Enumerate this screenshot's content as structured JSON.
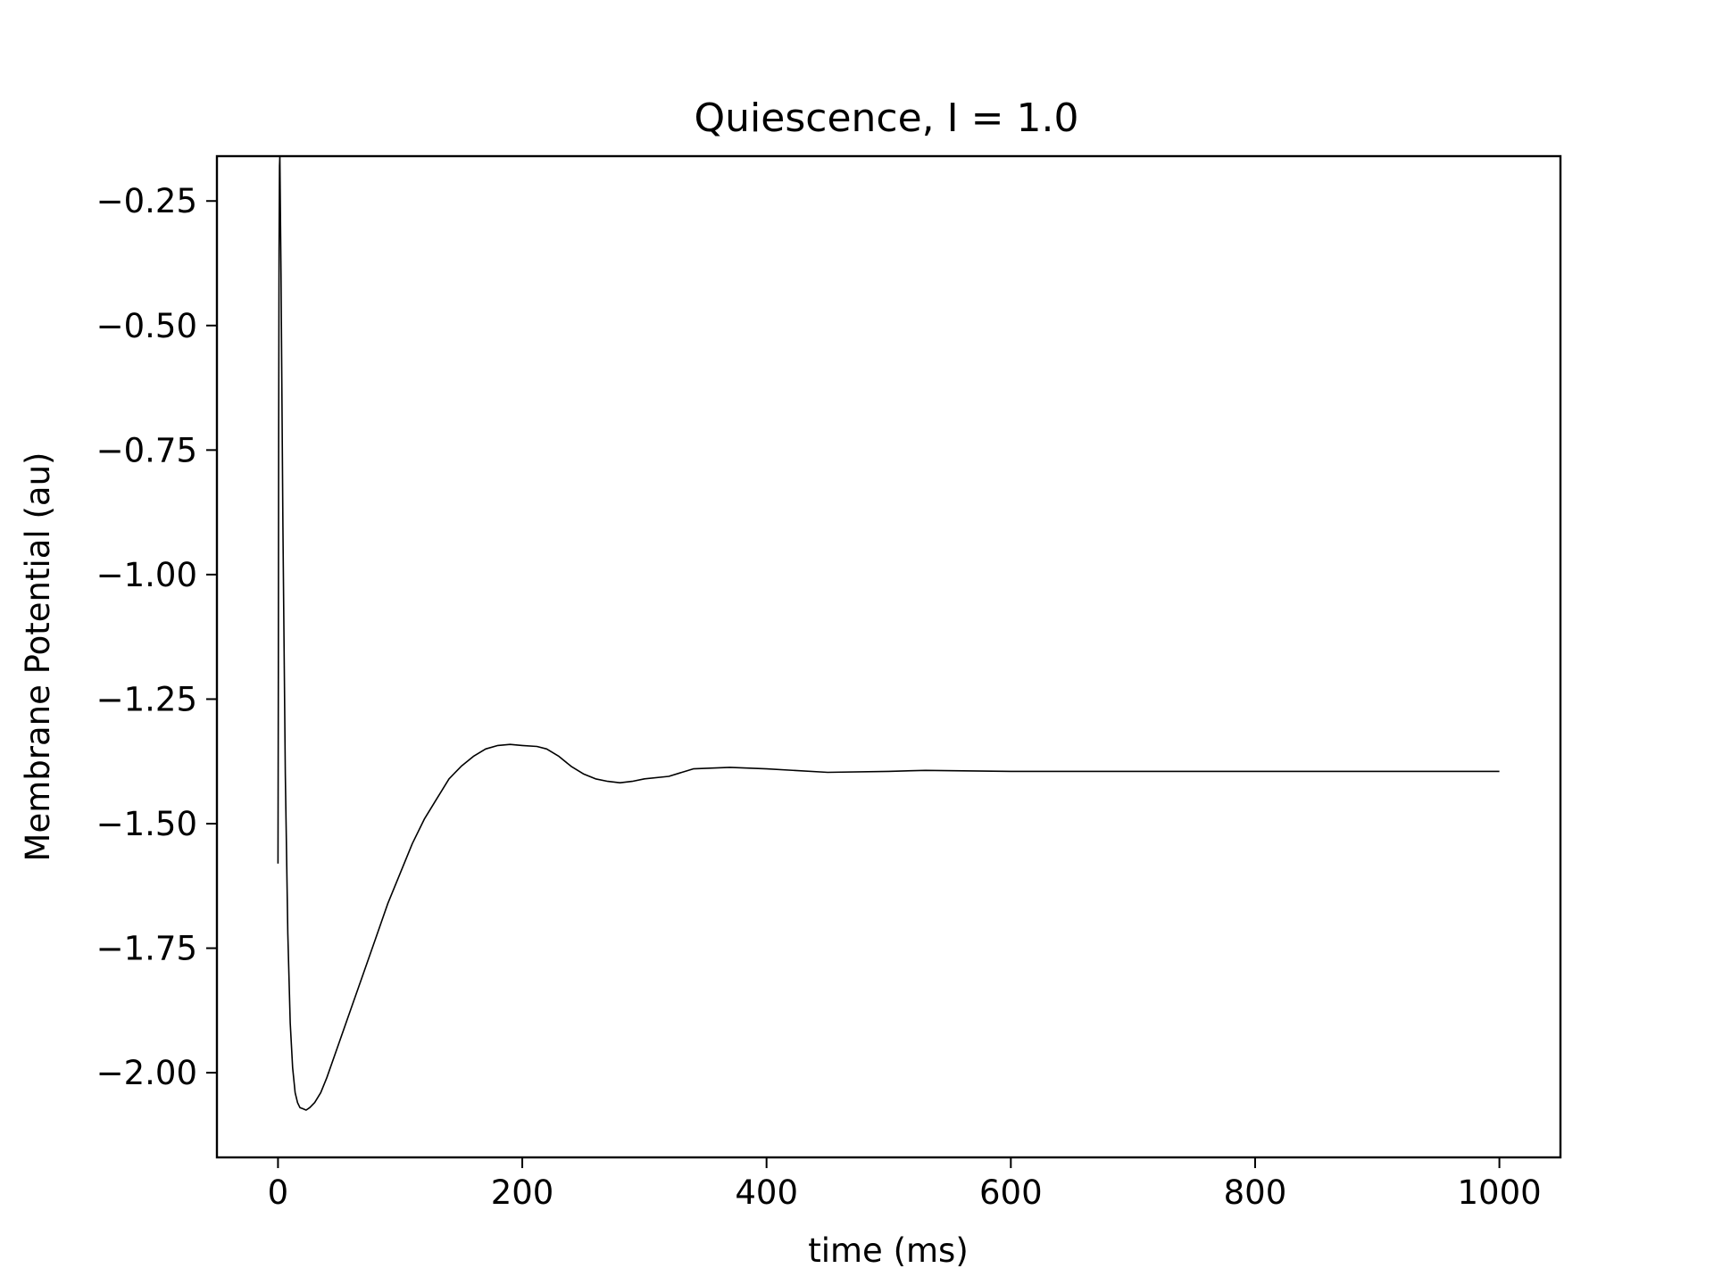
{
  "chart_data": {
    "type": "line",
    "title": "Quiescence, I = 1.0",
    "xlabel": "time (ms)",
    "ylabel": "Membrane Potential (au)",
    "xlim": [
      -50,
      1050
    ],
    "ylim": [
      -2.17,
      -0.16
    ],
    "xticks": [
      0,
      200,
      400,
      600,
      800,
      1000
    ],
    "xtick_labels": [
      "0",
      "200",
      "400",
      "600",
      "800",
      "1000"
    ],
    "yticks": [
      -0.25,
      -0.5,
      -0.75,
      -1.0,
      -1.25,
      -1.5,
      -1.75,
      -2.0
    ],
    "ytick_labels": [
      "−0.25",
      "−0.50",
      "−0.75",
      "−1.00",
      "−1.25",
      "−1.50",
      "−1.75",
      "−2.00"
    ],
    "grid": false,
    "line_color": "#000000",
    "series": [
      {
        "x": [
          0,
          0.3,
          0.6,
          0.9,
          1.2,
          1.5,
          2.5,
          4,
          6,
          8,
          10,
          12,
          14,
          16,
          18,
          20,
          23,
          26,
          30,
          35,
          40,
          50,
          60,
          70,
          80,
          90,
          100,
          110,
          120,
          130,
          140,
          150,
          160,
          170,
          180,
          190,
          200,
          212,
          220,
          230,
          240,
          250,
          260,
          270,
          280,
          290,
          300,
          320,
          340,
          370,
          400,
          450,
          500,
          530,
          600,
          700,
          800,
          900,
          1000
        ],
        "y": [
          -1.58,
          -1.2,
          -0.7,
          -0.35,
          -0.18,
          -0.16,
          -0.4,
          -0.9,
          -1.4,
          -1.72,
          -1.9,
          -1.99,
          -2.04,
          -2.06,
          -2.07,
          -2.072,
          -2.075,
          -2.07,
          -2.06,
          -2.04,
          -2.01,
          -1.94,
          -1.87,
          -1.8,
          -1.73,
          -1.66,
          -1.6,
          -1.54,
          -1.49,
          -1.45,
          -1.41,
          -1.385,
          -1.365,
          -1.35,
          -1.343,
          -1.341,
          -1.343,
          -1.345,
          -1.35,
          -1.365,
          -1.385,
          -1.4,
          -1.41,
          -1.415,
          -1.418,
          -1.415,
          -1.41,
          -1.405,
          -1.39,
          -1.387,
          -1.39,
          -1.397,
          -1.395,
          -1.393,
          -1.395,
          -1.395,
          -1.395,
          -1.395,
          -1.395
        ]
      }
    ]
  }
}
